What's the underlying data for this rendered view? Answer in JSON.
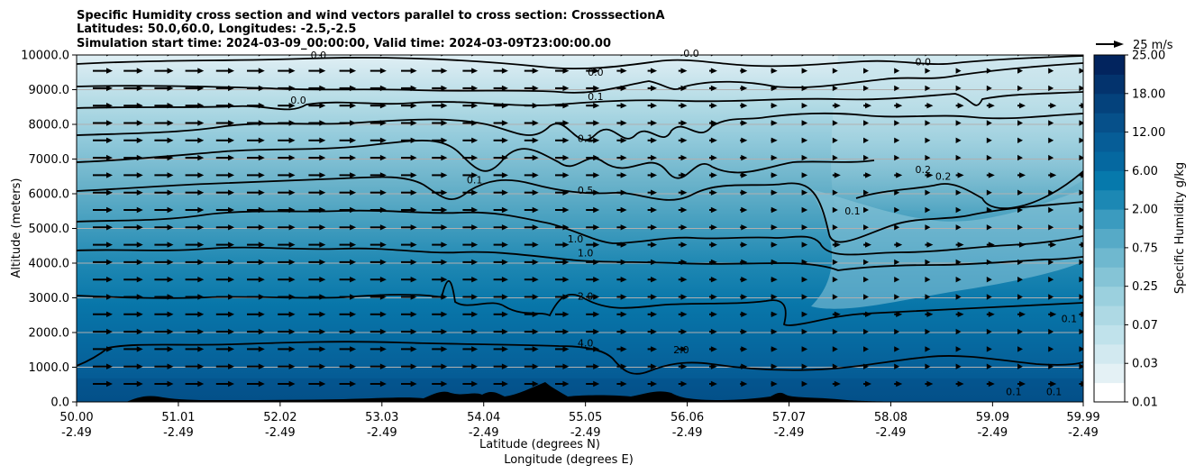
{
  "chart_data": {
    "type": "heatmap",
    "subtype": "filled-contour cross section with wind vectors",
    "title_lines": [
      "Specific Humidity cross section and wind vectors parallel to cross section: CrosssectionA",
      "Latitudes: 50.0,60.0, Longitudes: -2.5,-2.5",
      "Simulation start time: 2024-03-09_00:00:00, Valid time: 2024-03-09T23:00:00.00"
    ],
    "xlabel_line1": "Latitude (degrees N)",
    "xlabel_line2": "Longitude (degrees E)",
    "ylabel": "Altitude (meters)",
    "x_ticks": [
      {
        "lat": "50.00",
        "lon": "-2.49",
        "value": 50.0
      },
      {
        "lat": "51.01",
        "lon": "-2.49",
        "value": 51.01
      },
      {
        "lat": "52.02",
        "lon": "-2.49",
        "value": 52.02
      },
      {
        "lat": "53.03",
        "lon": "-2.49",
        "value": 53.03
      },
      {
        "lat": "54.04",
        "lon": "-2.49",
        "value": 54.04
      },
      {
        "lat": "55.05",
        "lon": "-2.49",
        "value": 55.05
      },
      {
        "lat": "56.06",
        "lon": "-2.49",
        "value": 56.06
      },
      {
        "lat": "57.07",
        "lon": "-2.49",
        "value": 57.07
      },
      {
        "lat": "58.08",
        "lon": "-2.49",
        "value": 58.08
      },
      {
        "lat": "59.09",
        "lon": "-2.49",
        "value": 59.09
      },
      {
        "lat": "59.99",
        "lon": "-2.49",
        "value": 59.99
      }
    ],
    "xlim": [
      50.0,
      59.99
    ],
    "y_ticks": [
      "0.0",
      "1000.0",
      "2000.0",
      "3000.0",
      "4000.0",
      "5000.0",
      "6000.0",
      "7000.0",
      "8000.0",
      "9000.0",
      "10000.0"
    ],
    "ylim": [
      0,
      10000
    ],
    "grid": "horizontal",
    "colorbar": {
      "label": "Specific Humidity g/kg",
      "levels": [
        0.01,
        0.02,
        0.03,
        0.05,
        0.07,
        0.1,
        0.25,
        0.5,
        0.75,
        1.0,
        2.0,
        4.0,
        6.0,
        9.0,
        12.0,
        15.0,
        18.0,
        21.0,
        25.0
      ],
      "tick_labels": [
        "0.01",
        "0.03",
        "0.07",
        "0.25",
        "0.75",
        "2.00",
        "6.00",
        "12.00",
        "18.00",
        "25.00"
      ],
      "colors": [
        "#ffffff",
        "#e4f1f5",
        "#d2e9f0",
        "#c0e2eb",
        "#aed9e4",
        "#9bd0de",
        "#85c4d6",
        "#6fb8cf",
        "#56aac7",
        "#3b9bbf",
        "#1c88b4",
        "#0679ac",
        "#0568a0",
        "#065d97",
        "#06508a",
        "#04427c",
        "#03336d",
        "#02245e",
        "#011a52"
      ]
    },
    "quiver_key": {
      "label": "25 m/s",
      "value": 25
    },
    "contour_lines": [
      {
        "label": "0.0",
        "altitude": 9700
      },
      {
        "label": "0.0",
        "altitude": 9100
      },
      {
        "label": "0.1",
        "altitude": 8700
      },
      {
        "label": "0.1",
        "altitude": 7500
      },
      {
        "label": "0.5",
        "altitude": 6300
      },
      {
        "label": "1.0",
        "altitude": 5200
      },
      {
        "label": "1.0",
        "altitude": 4300
      },
      {
        "label": "2.0",
        "altitude": 3000
      },
      {
        "label": "4.0",
        "altitude": 1500
      }
    ],
    "contour_labels": [
      {
        "text": "0.0",
        "lat": 55.15,
        "alt": 9400
      },
      {
        "text": "0.1",
        "lat": 55.15,
        "alt": 8700
      },
      {
        "text": "0.1",
        "lat": 55.05,
        "alt": 7500
      },
      {
        "text": "0.1",
        "lat": 53.95,
        "alt": 6300
      },
      {
        "text": "0.5",
        "lat": 55.05,
        "alt": 6000
      },
      {
        "text": "1.0",
        "lat": 54.95,
        "alt": 4600
      },
      {
        "text": "1.0",
        "lat": 55.05,
        "alt": 4200
      },
      {
        "text": "2.0",
        "lat": 55.05,
        "alt": 2950
      },
      {
        "text": "4.0",
        "lat": 55.05,
        "alt": 1600
      },
      {
        "text": "2.0",
        "lat": 56.0,
        "alt": 1400
      },
      {
        "text": "0.0",
        "lat": 52.2,
        "alt": 8600
      },
      {
        "text": "0.0",
        "lat": 52.4,
        "alt": 9900
      },
      {
        "text": "0.0",
        "lat": 56.1,
        "alt": 9950
      },
      {
        "text": "0.0",
        "lat": 58.4,
        "alt": 9700
      },
      {
        "text": "0.2",
        "lat": 58.4,
        "alt": 6600
      },
      {
        "text": "0.2",
        "lat": 58.6,
        "alt": 6400
      },
      {
        "text": "0.1",
        "lat": 57.7,
        "alt": 5400
      },
      {
        "text": "0.1",
        "lat": 59.85,
        "alt": 2300
      },
      {
        "text": "0.1",
        "lat": 59.7,
        "alt": 200
      },
      {
        "text": "0.1",
        "lat": 59.3,
        "alt": 200
      }
    ],
    "wind_vectors": {
      "direction": "parallel to cross section, predominantly southward-to-northward (pointing right)"
    }
  }
}
